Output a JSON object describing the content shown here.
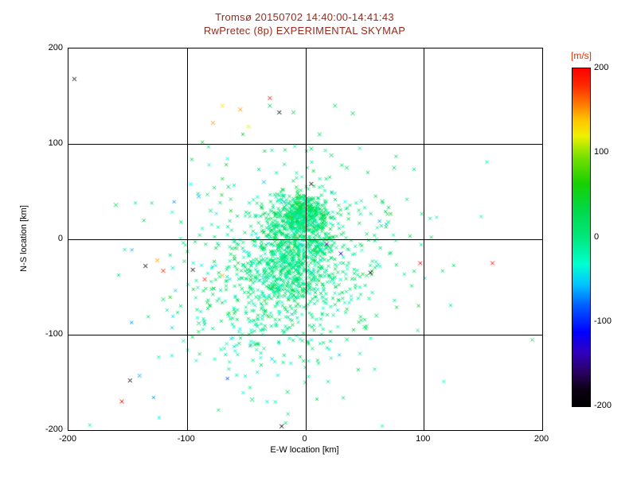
{
  "chart_data": {
    "type": "scatter",
    "title": "Tromsø 20150702 14:40:00-14:41:43",
    "subtitle": "RwPretec (8p) EXPERIMENTAL SKYMAP",
    "xlabel": "E-W location [km]",
    "ylabel": "N-S location [km]",
    "xlim": [
      -200,
      200
    ],
    "ylim": [
      -200,
      200
    ],
    "xticks": [
      -200,
      -100,
      0,
      100,
      200
    ],
    "xtick_labels": [
      "-200",
      "-100",
      "0",
      "100",
      "200"
    ],
    "yticks": [
      -200,
      -100,
      0,
      100,
      200
    ],
    "ytick_labels": [
      "-200",
      "-100",
      "0",
      "100",
      "200"
    ],
    "grid": true,
    "grid_values": [
      -100,
      0,
      100
    ],
    "marker": "x",
    "legend_position": "right-colorbar",
    "colors": {
      "title": "#9b291c",
      "axis": "#000000",
      "colorbar_label": "#e03000",
      "background": "#ffffff"
    },
    "colorbar": {
      "label": "[m/s]",
      "min": -200,
      "max": 200,
      "ticks": [
        200,
        100,
        0,
        -100,
        -200
      ],
      "tick_labels": [
        "200",
        "100",
        "0",
        "-100",
        "-200"
      ]
    },
    "colormap": [
      {
        "t": 0.0,
        "c": "#000000"
      },
      {
        "t": 0.05,
        "c": "#0a0014"
      },
      {
        "t": 0.1,
        "c": "#2a0060"
      },
      {
        "t": 0.16,
        "c": "#3000c0"
      },
      {
        "t": 0.22,
        "c": "#0000ff"
      },
      {
        "t": 0.3,
        "c": "#0060ff"
      },
      {
        "t": 0.36,
        "c": "#00c4ff"
      },
      {
        "t": 0.42,
        "c": "#00ffd0"
      },
      {
        "t": 0.5,
        "c": "#00e87c"
      },
      {
        "t": 0.58,
        "c": "#00d84a"
      },
      {
        "t": 0.66,
        "c": "#18d000"
      },
      {
        "t": 0.74,
        "c": "#7ce000"
      },
      {
        "t": 0.8,
        "c": "#f0f000"
      },
      {
        "t": 0.85,
        "c": "#ffc000"
      },
      {
        "t": 0.9,
        "c": "#ff7000"
      },
      {
        "t": 0.95,
        "c": "#ff2800"
      },
      {
        "t": 1.0,
        "c": "#ff0000"
      }
    ],
    "clusters": [
      {
        "cx": -2,
        "cy": 28,
        "sx": 9,
        "sy": 11,
        "n": 260,
        "v_mean": 15,
        "v_sd": 18
      },
      {
        "cx": -6,
        "cy": 8,
        "sx": 16,
        "sy": 20,
        "n": 500,
        "v_mean": 5,
        "v_sd": 18
      },
      {
        "cx": -12,
        "cy": -38,
        "sx": 24,
        "sy": 20,
        "n": 420,
        "v_mean": 0,
        "v_sd": 15
      },
      {
        "cx": -15,
        "cy": -15,
        "sx": 42,
        "sy": 45,
        "n": 380,
        "v_mean": 0,
        "v_sd": 22
      },
      {
        "cx": -40,
        "cy": -85,
        "sx": 28,
        "sy": 25,
        "n": 140,
        "v_mean": -5,
        "v_sd": 20
      },
      {
        "cx": -15,
        "cy": -40,
        "sx": 65,
        "sy": 62,
        "n": 220,
        "v_mean": -5,
        "v_sd": 30
      }
    ],
    "outlier_points": [
      {
        "x": -195,
        "y": 168,
        "v": -195
      },
      {
        "x": -160,
        "y": 36,
        "v": 20
      },
      {
        "x": -155,
        "y": -170,
        "v": 195
      },
      {
        "x": -148,
        "y": -148,
        "v": -185
      },
      {
        "x": -140,
        "y": -143,
        "v": -60
      },
      {
        "x": -135,
        "y": -28,
        "v": -190
      },
      {
        "x": -125,
        "y": -22,
        "v": 150
      },
      {
        "x": -120,
        "y": -33,
        "v": 185
      },
      {
        "x": -120,
        "y": -63,
        "v": 5
      },
      {
        "x": -112,
        "y": -30,
        "v": -40
      },
      {
        "x": -95,
        "y": -32,
        "v": -195
      },
      {
        "x": -90,
        "y": -88,
        "v": 10
      },
      {
        "x": -85,
        "y": -42,
        "v": 180
      },
      {
        "x": -70,
        "y": -38,
        "v": 145
      },
      {
        "x": -70,
        "y": 140,
        "v": 125
      },
      {
        "x": -78,
        "y": 122,
        "v": 150
      },
      {
        "x": -55,
        "y": 136,
        "v": 150
      },
      {
        "x": -48,
        "y": 118,
        "v": 120
      },
      {
        "x": -30,
        "y": 148,
        "v": 185
      },
      {
        "x": -22,
        "y": 133,
        "v": -195
      },
      {
        "x": -10,
        "y": 133,
        "v": 20
      },
      {
        "x": -30,
        "y": 140,
        "v": 10
      },
      {
        "x": 25,
        "y": 140,
        "v": 15
      },
      {
        "x": 40,
        "y": 132,
        "v": 25
      },
      {
        "x": -90,
        "y": 45,
        "v": -60
      },
      {
        "x": -80,
        "y": 30,
        "v": 10
      },
      {
        "x": -65,
        "y": 55,
        "v": 15
      },
      {
        "x": -35,
        "y": 60,
        "v": -55
      },
      {
        "x": 5,
        "y": 95,
        "v": 10
      },
      {
        "x": 12,
        "y": 110,
        "v": 20
      },
      {
        "x": 22,
        "y": 88,
        "v": 10
      },
      {
        "x": 35,
        "y": 75,
        "v": 15
      },
      {
        "x": 75,
        "y": 75,
        "v": 10
      },
      {
        "x": 65,
        "y": 40,
        "v": 20
      },
      {
        "x": 70,
        "y": 18,
        "v": 10
      },
      {
        "x": 55,
        "y": -35,
        "v": -195
      },
      {
        "x": 60,
        "y": -80,
        "v": 10
      },
      {
        "x": 50,
        "y": -92,
        "v": 15
      },
      {
        "x": 35,
        "y": -105,
        "v": 5
      },
      {
        "x": 97,
        "y": -25,
        "v": 195
      },
      {
        "x": 158,
        "y": -25,
        "v": 190
      },
      {
        "x": -20,
        "y": -196,
        "v": -195
      },
      {
        "x": -45,
        "y": -168,
        "v": 10
      },
      {
        "x": -15,
        "y": -160,
        "v": 5
      },
      {
        "x": 0,
        "y": -150,
        "v": 10
      },
      {
        "x": 30,
        "y": -15,
        "v": -120
      },
      {
        "x": 18,
        "y": -5,
        "v": -150
      },
      {
        "x": 5,
        "y": 58,
        "v": -190
      },
      {
        "x": -12,
        "y": -8,
        "v": 130
      },
      {
        "x": -8,
        "y": 2,
        "v": 150
      }
    ]
  }
}
